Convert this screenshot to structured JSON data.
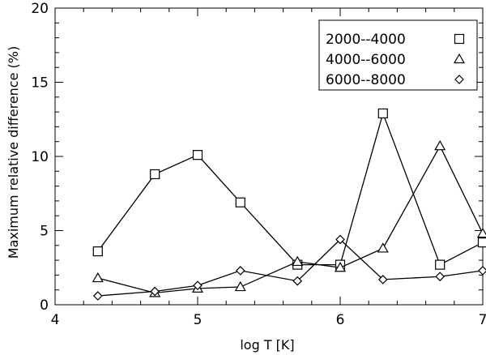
{
  "chart_data": {
    "type": "line",
    "xlabel": "log T [K]",
    "ylabel": "Maximum relative difference (%)",
    "xlim": [
      4,
      7
    ],
    "ylim": [
      0,
      20
    ],
    "x_ticks": [
      4,
      5,
      6,
      7
    ],
    "x_tick_labels": [
      "4",
      "5",
      "6",
      "7"
    ],
    "y_ticks": [
      0,
      5,
      10,
      15,
      20
    ],
    "y_tick_labels": [
      "0",
      "5",
      "10",
      "15",
      "20"
    ],
    "grid": false,
    "legend_position": "top-right",
    "series": [
      {
        "name": "2000--4000",
        "marker": "square",
        "x": [
          4.3,
          4.7,
          5.0,
          5.3,
          5.7,
          6.0,
          6.3,
          6.7,
          7.0
        ],
        "y": [
          3.6,
          8.8,
          10.1,
          6.9,
          2.7,
          2.7,
          12.9,
          2.7,
          4.2
        ]
      },
      {
        "name": "4000--6000",
        "marker": "triangle",
        "x": [
          4.3,
          4.7,
          5.0,
          5.3,
          5.7,
          6.0,
          6.3,
          6.7,
          7.0
        ],
        "y": [
          1.8,
          0.8,
          1.1,
          1.2,
          2.9,
          2.5,
          3.8,
          10.7,
          4.8
        ]
      },
      {
        "name": "6000--8000",
        "marker": "diamond",
        "x": [
          4.3,
          4.7,
          5.0,
          5.3,
          5.7,
          6.0,
          6.3,
          6.7,
          7.0
        ],
        "y": [
          0.6,
          0.9,
          1.3,
          2.3,
          1.6,
          4.4,
          1.7,
          1.9,
          2.3
        ]
      }
    ]
  }
}
